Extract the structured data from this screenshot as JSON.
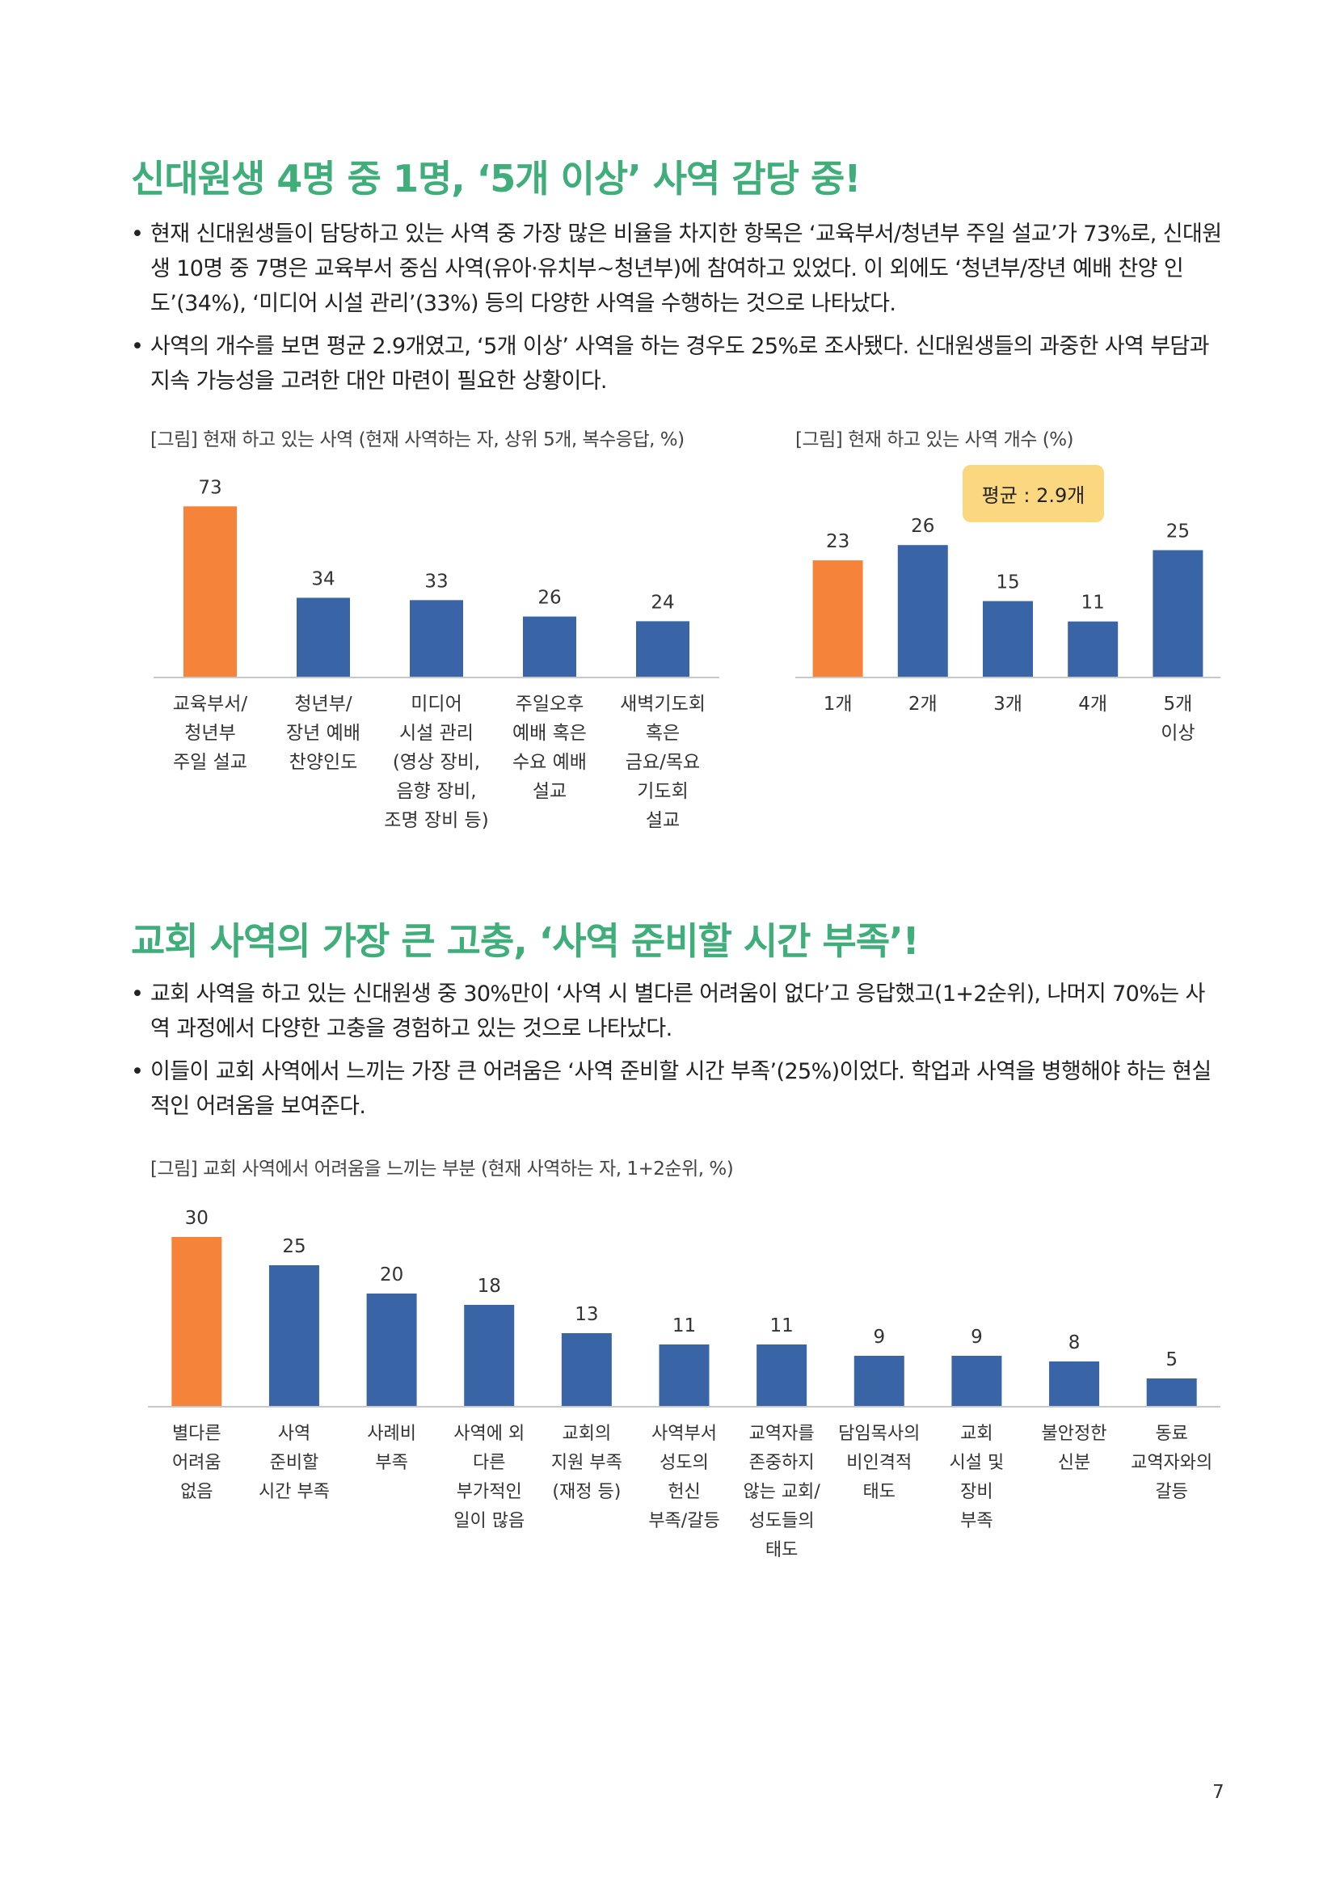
{
  "section1": {
    "title": "신대원생 4명 중 1명, ‘5개 이상’ 사역 감당 중!",
    "bullets": [
      "현재 신대원생들이 담당하고 있는 사역 중 가장 많은 비율을 차지한 항목은 ‘교육부서/청년부 주일 설교’가 73%로, 신대원생 10명 중 7명은 교육부서 중심 사역(유아·유치부~청년부)에 참여하고 있었다. 이 외에도 ‘청년부/장년 예배 찬양 인도’(34%), ‘미디어 시설 관리’(33%) 등의 다양한 사역을 수행하는 것으로 나타났다.",
      "사역의 개수를 보면 평균 2.9개였고, ‘5개 이상’ 사역을 하는 경우도 25%로 조사됐다. 신대원생들의 과중한 사역 부담과 지속 가능성을 고려한 대안 마련이 필요한 상황이다."
    ]
  },
  "section2": {
    "title": "교회 사역의 가장 큰 고충, ‘사역 준비할 시간 부족’!",
    "bullets": [
      "교회 사역을 하고 있는 신대원생 중 30%만이 ‘사역 시 별다른 어려움이 없다’고 응답했고(1+2순위), 나머지 70%는 사역 과정에서 다양한 고충을 경험하고 있는 것으로 나타났다.",
      "이들이 교회 사역에서 느끼는 가장 큰 어려움은 ‘사역 준비할 시간 부족’(25%)이었다. 학업과 사역을 병행해야 하는 현실적인 어려움을 보여준다."
    ]
  },
  "colors": {
    "highlight": "#f5843a",
    "bar": "#3965a6",
    "heading": "#3fae7a",
    "badge": "#fbd87f"
  },
  "chart_data": [
    {
      "type": "bar",
      "title": "[그림] 현재 하고 있는 사역 (현재 사역하는 자, 상위 5개, 복수응답, %)",
      "categories": [
        [
          "교육부서/",
          "청년부",
          "주일 설교"
        ],
        [
          "청년부/",
          "장년 예배",
          "찬양인도"
        ],
        [
          "미디어",
          "시설 관리",
          "(영상 장비,",
          "음향 장비,",
          "조명 장비 등)"
        ],
        [
          "주일오후",
          "예배 혹은",
          "수요 예배",
          "설교"
        ],
        [
          "새벽기도회",
          "혹은",
          "금요/목요",
          "기도회",
          "설교"
        ]
      ],
      "values": [
        73,
        34,
        33,
        26,
        24
      ],
      "highlight_index": 0
    },
    {
      "type": "bar",
      "title": "[그림] 현재 하고 있는 사역 개수 (%)",
      "categories": [
        [
          "1개"
        ],
        [
          "2개"
        ],
        [
          "3개"
        ],
        [
          "4개"
        ],
        [
          "5개",
          "이상"
        ]
      ],
      "values": [
        23,
        26,
        15,
        11,
        25
      ],
      "highlight_index": 0,
      "annotation": "평균 : 2.9개"
    },
    {
      "type": "bar",
      "title": "[그림] 교회 사역에서 어려움을 느끼는 부분 (현재 사역하는 자, 1+2순위, %)",
      "categories": [
        [
          "별다른",
          "어려움",
          "없음"
        ],
        [
          "사역",
          "준비할",
          "시간 부족"
        ],
        [
          "사례비",
          "부족"
        ],
        [
          "사역에 외",
          "다른",
          "부가적인",
          "일이 많음"
        ],
        [
          "교회의",
          "지원 부족",
          "(재정 등)"
        ],
        [
          "사역부서",
          "성도의",
          "헌신",
          "부족/갈등"
        ],
        [
          "교역자를",
          "존중하지",
          "않는 교회/",
          "성도들의",
          "태도"
        ],
        [
          "담임목사의",
          "비인격적",
          "태도"
        ],
        [
          "교회",
          "시설 및",
          "장비",
          "부족"
        ],
        [
          "불안정한",
          "신분"
        ],
        [
          "동료",
          "교역자와의",
          "갈등"
        ]
      ],
      "values": [
        30,
        25,
        20,
        18,
        13,
        11,
        11,
        9,
        9,
        8,
        5
      ],
      "highlight_index": 0
    }
  ],
  "page_number": "7"
}
